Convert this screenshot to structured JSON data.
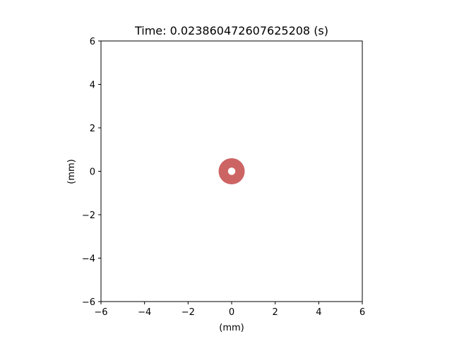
{
  "chart_data": {
    "type": "scatter",
    "title": "Time: 0.023860472607625208 (s)",
    "xlabel": "(mm)",
    "ylabel": "(mm)",
    "xlim": [
      -6,
      6
    ],
    "ylim": [
      -6,
      6
    ],
    "xticks": [
      -6,
      -4,
      -2,
      0,
      2,
      4,
      6
    ],
    "yticks": [
      -6,
      -4,
      -2,
      0,
      2,
      4,
      6
    ],
    "xtick_labels": [
      "−6",
      "−4",
      "−2",
      "0",
      "2",
      "4",
      "6"
    ],
    "ytick_labels": [
      "−6",
      "−4",
      "−2",
      "0",
      "2",
      "4",
      "6"
    ],
    "grid": false,
    "shapes": [
      {
        "kind": "annulus",
        "cx": 0,
        "cy": 0,
        "outer_radius": 0.6,
        "inner_radius": 0.17,
        "color": "#cd6464"
      }
    ]
  }
}
